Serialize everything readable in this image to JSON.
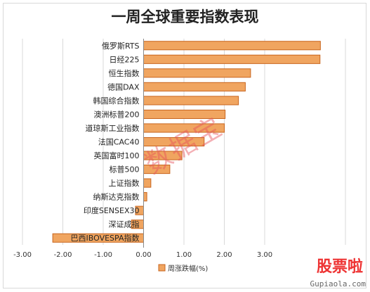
{
  "chart_data": {
    "type": "bar",
    "orientation": "horizontal",
    "title": "一周全球重要指数表现",
    "categories": [
      "俄罗斯RTS",
      "日经225",
      "恒生指数",
      "德国DAX",
      "韩国综合指数",
      "澳洲标普200",
      "道琼斯工业指数",
      "法国CAC40",
      "英国富时100",
      "标普500",
      "上证指数",
      "纳斯达克指数",
      "印度SENSEX30",
      "深证成指",
      "巴西IBOVESPA指数"
    ],
    "values": [
      4.38,
      4.37,
      2.65,
      2.52,
      2.35,
      2.02,
      2.0,
      1.5,
      0.95,
      0.65,
      0.18,
      0.08,
      -0.2,
      -0.3,
      -2.25
    ],
    "xlim": [
      -3,
      5
    ],
    "xticks": [
      "-3.00",
      "-2.00",
      "-1.00",
      "0.00",
      "1.00",
      "2.00",
      "3.00"
    ],
    "legend": "周涨跌幅(%)",
    "legend_position": "bottom",
    "bar_color": "#f0a560",
    "bar_border": "#c8651e",
    "grid": true
  },
  "watermark": "数据宝",
  "logo": {
    "text": "股票啦",
    "url_text": "Gupiaola.com"
  }
}
